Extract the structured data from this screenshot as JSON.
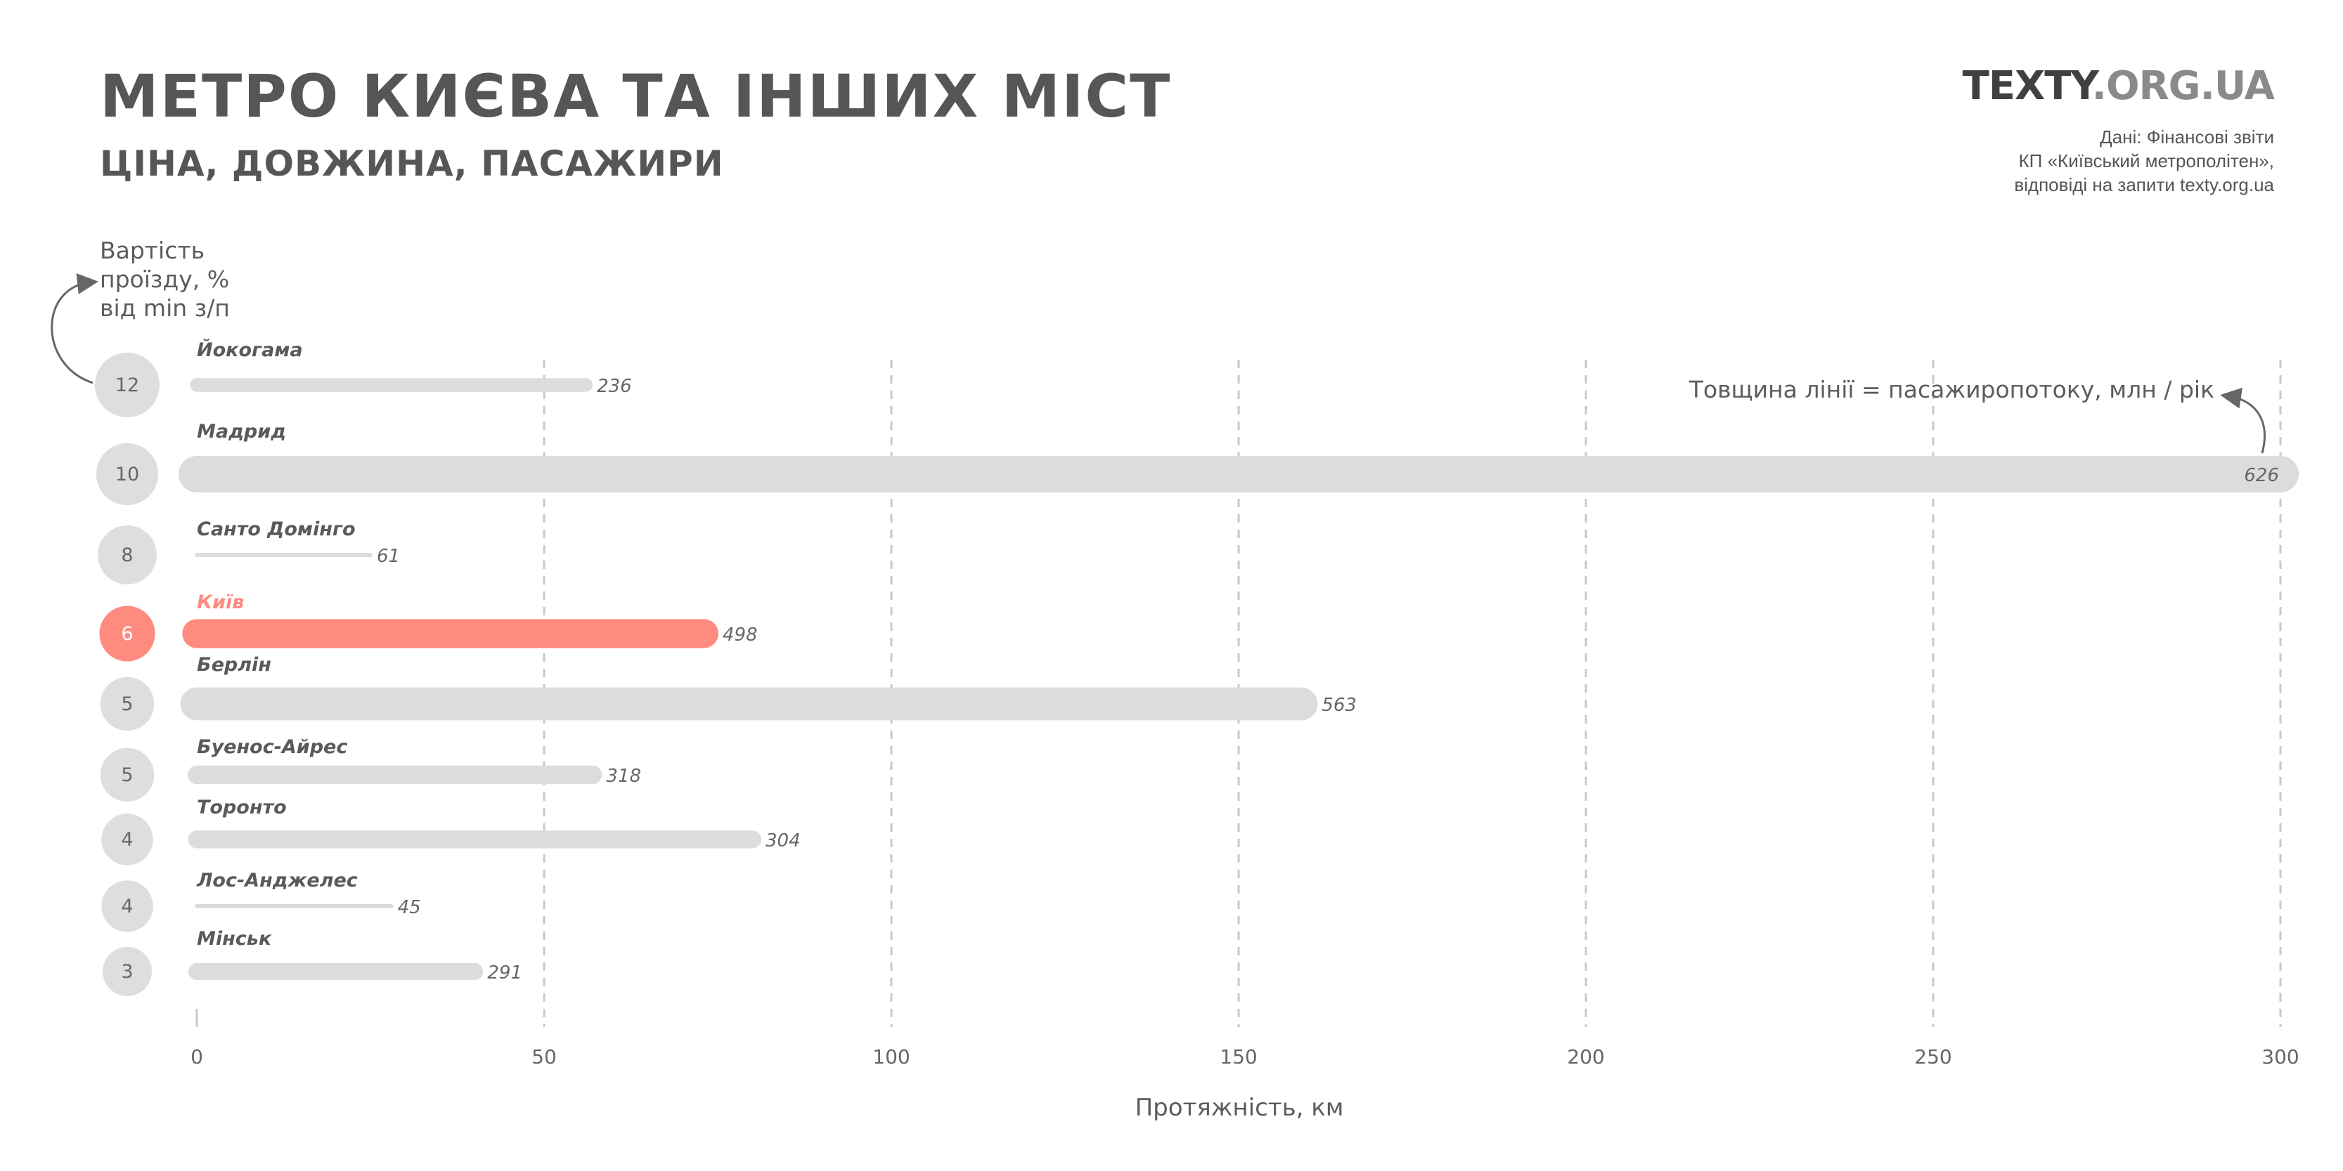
{
  "header": {
    "title": "МЕТРО КИЄВА ТА ІНШИХ МІСТ",
    "subtitle": "ЦІНА, ДОВЖИНА, ПАСАЖИРИ",
    "brand_main": "TEXTY",
    "brand_domain": ".ORG.UA",
    "source_lines": [
      "Дані: Фінансові звіти",
      "КП «Київський метрополітен»,",
      "відповіді на запити texty.org.ua"
    ]
  },
  "chart_data": {
    "type": "bar",
    "xlabel": "Протяжність, км",
    "xlim": [
      0,
      300
    ],
    "xticks": [
      "0",
      "50",
      "100",
      "150",
      "200",
      "250",
      "300"
    ],
    "grid": "vertical-dashed",
    "fare_legend": [
      "Вартість",
      "проїзду, %",
      "від min з/п"
    ],
    "thickness_legend": "Товщина лінії = пасажиропотоку, млн / рік",
    "colors": {
      "default": "#dcdcdc",
      "highlight": "#ff8b80",
      "circle": "#dedede",
      "text": "#5c5c5c"
    },
    "series": [
      {
        "city": "Йокогама",
        "fare_percent": 12,
        "length_km": 56,
        "passengers_mln": 236,
        "highlight": false
      },
      {
        "city": "Мадрид",
        "fare_percent": 10,
        "length_km": 300,
        "passengers_mln": 626,
        "highlight": false
      },
      {
        "city": "Санто Домінго",
        "fare_percent": 8,
        "length_km": 25,
        "passengers_mln": 61,
        "highlight": false
      },
      {
        "city": "Київ",
        "fare_percent": 6,
        "length_km": 73,
        "passengers_mln": 498,
        "highlight": true
      },
      {
        "city": "Берлін",
        "fare_percent": 5,
        "length_km": 159,
        "passengers_mln": 563,
        "highlight": false
      },
      {
        "city": "Буенос-Айрес",
        "fare_percent": 5,
        "length_km": 57,
        "passengers_mln": 318,
        "highlight": false
      },
      {
        "city": "Торонто",
        "fare_percent": 4,
        "length_km": 80,
        "passengers_mln": 304,
        "highlight": false
      },
      {
        "city": "Лос-Анджелес",
        "fare_percent": 4,
        "length_km": 28,
        "passengers_mln": 45,
        "highlight": false
      },
      {
        "city": "Мінськ",
        "fare_percent": 3,
        "length_km": 40,
        "passengers_mln": 291,
        "highlight": false
      }
    ]
  }
}
